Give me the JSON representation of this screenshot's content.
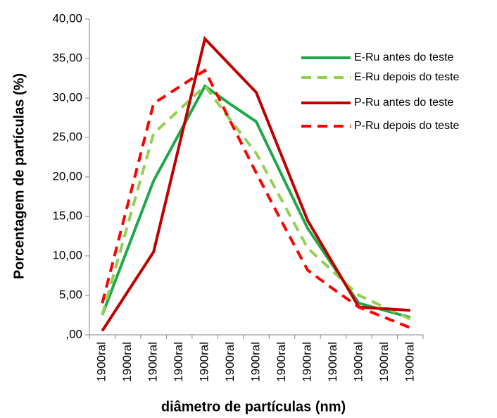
{
  "chart_data": {
    "type": "line",
    "xlabel": "diâmetro de partículas (nm)",
    "ylabel": "Porcentagem de partículas (%)",
    "categories": [
      "1900ral",
      "1900ral",
      "1900ral",
      "1900ral",
      "1900ral",
      "1900ral",
      "1900ral",
      "1900ral",
      "1900ral",
      "1900ral",
      "1900ral",
      "1900ral",
      "1900ral"
    ],
    "series": [
      {
        "name": "E-Ru antes do teste",
        "color": "#1fa84a",
        "dash": false,
        "values": [
          2.5,
          11,
          19.5,
          25.5,
          31.5,
          29.2,
          27,
          20.2,
          13.5,
          8.7,
          4,
          3.1,
          2.2
        ]
      },
      {
        "name": "E-Ru depois do teste",
        "color": "#92d050",
        "dash": true,
        "values": [
          2.5,
          14,
          25.5,
          28.5,
          31.5,
          27.2,
          23,
          17,
          11,
          8,
          5,
          3.5,
          2
        ]
      },
      {
        "name": "P-Ru antes do teste",
        "color": "#c00000",
        "dash": false,
        "values": [
          0.5,
          5.5,
          10.5,
          24,
          37.5,
          34.1,
          30.7,
          22.6,
          14.5,
          9,
          3.5,
          3.3,
          3.1
        ]
      },
      {
        "name": "P-Ru depois do teste",
        "color": "#ff0000",
        "dash": true,
        "values": [
          4,
          16.6,
          29.3,
          31.4,
          33.5,
          27,
          20.5,
          14.3,
          8.2,
          5.8,
          3.5,
          2.2,
          0.9
        ]
      }
    ],
    "ylim": [
      0,
      40
    ],
    "yticks": [
      {
        "value": 0,
        "label": ",00"
      },
      {
        "value": 5,
        "label": "5,00"
      },
      {
        "value": 10,
        "label": "10,00"
      },
      {
        "value": 15,
        "label": "15,00"
      },
      {
        "value": 20,
        "label": "20,00"
      },
      {
        "value": 25,
        "label": "25,00"
      },
      {
        "value": 30,
        "label": "30,00"
      },
      {
        "value": 35,
        "label": "35,00"
      },
      {
        "value": 40,
        "label": "40,00"
      }
    ],
    "legend": "upper right"
  }
}
